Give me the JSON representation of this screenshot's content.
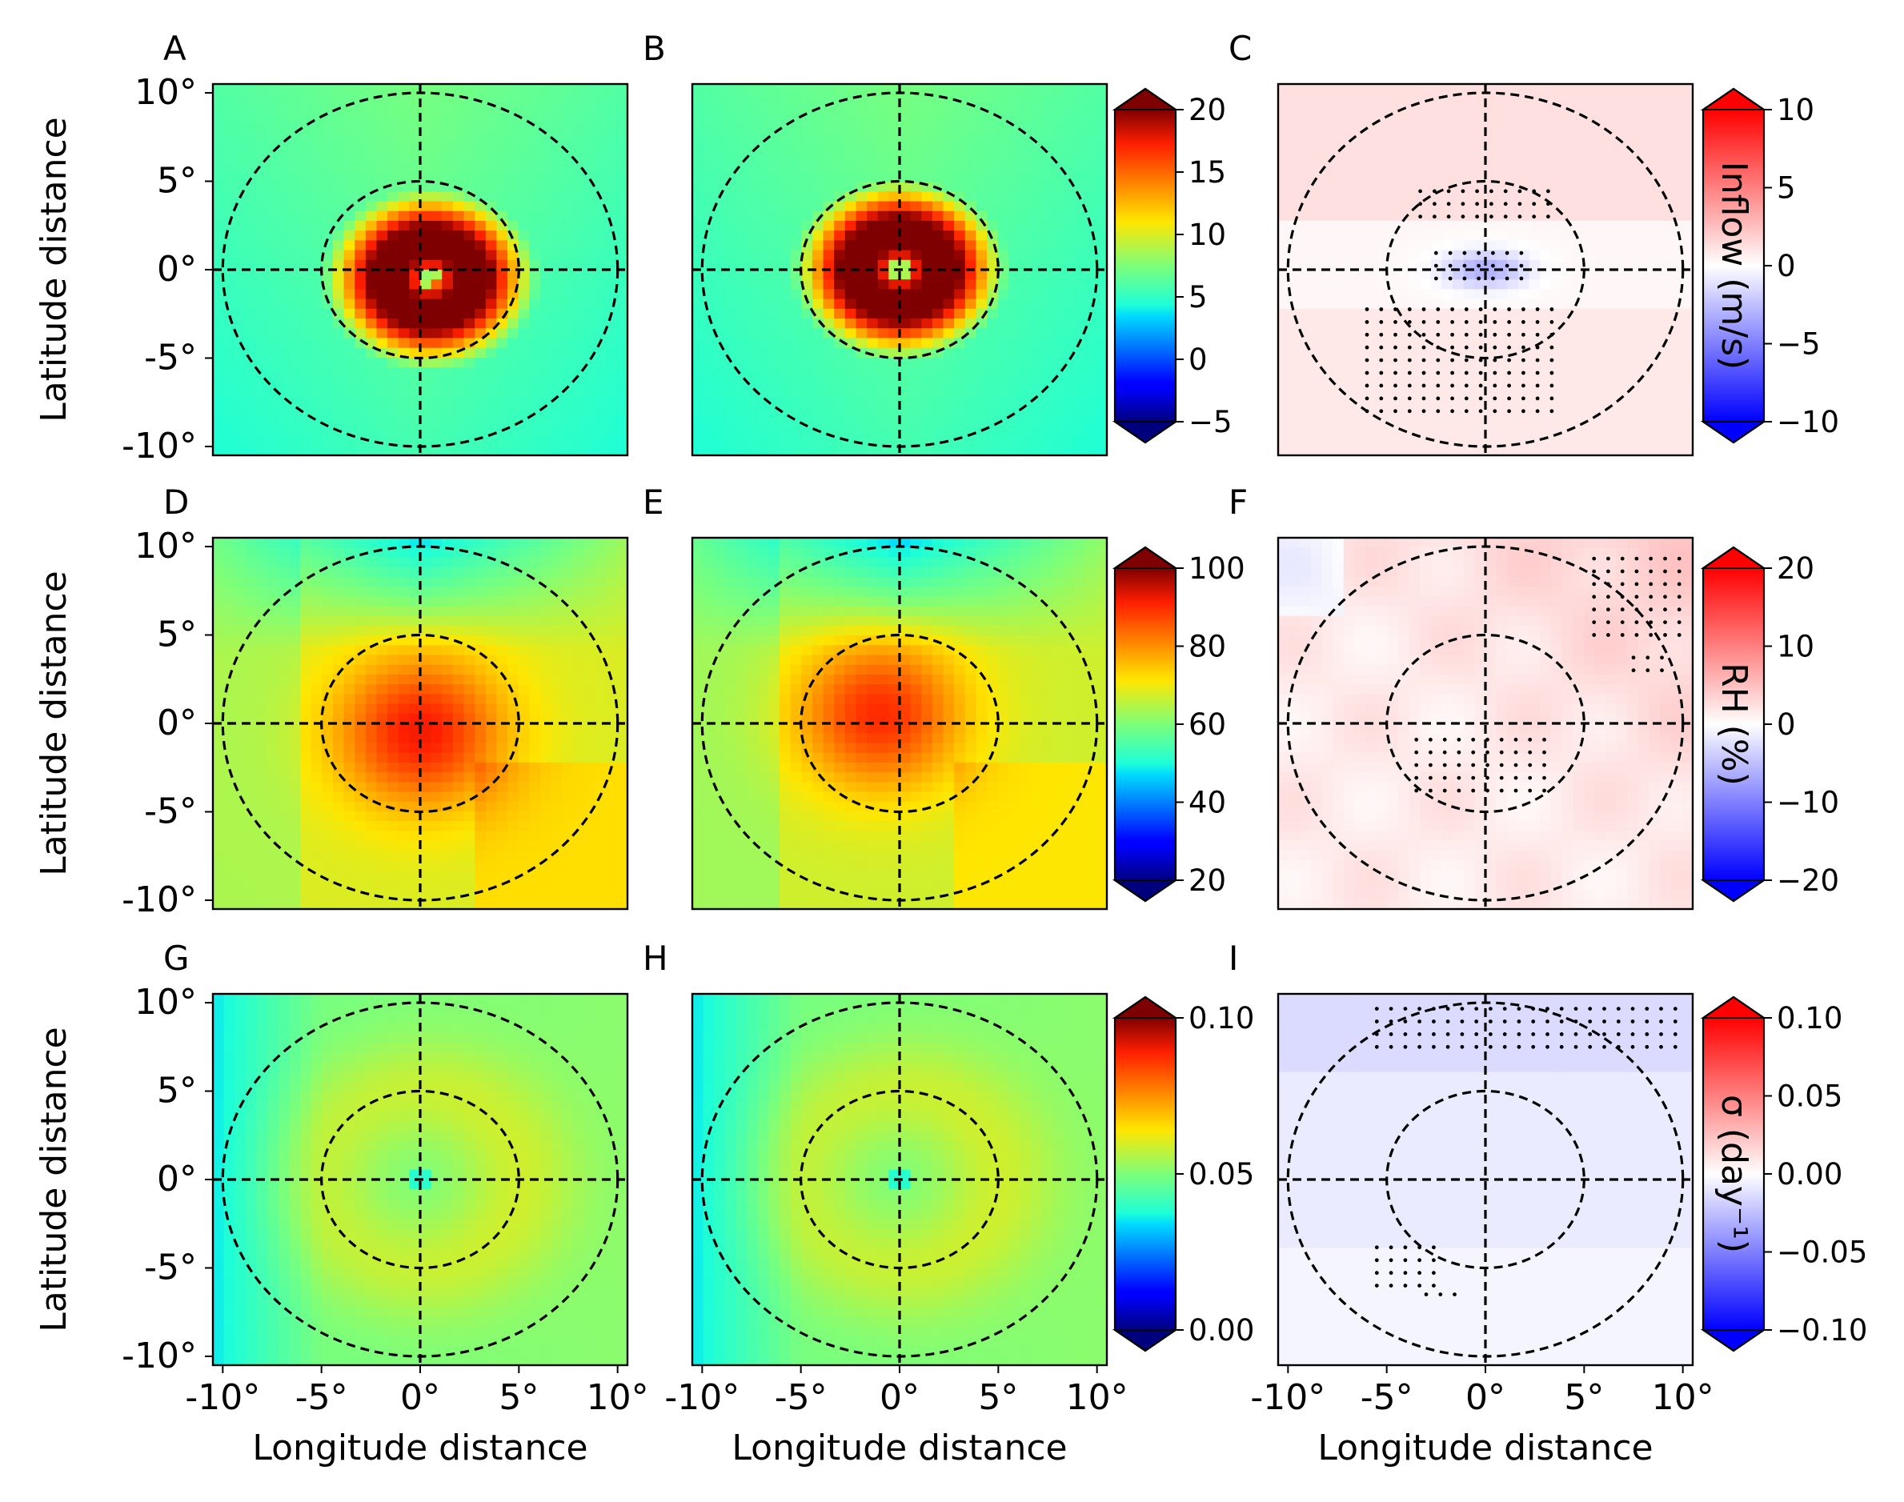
{
  "chart_data": {
    "type": "heatmap",
    "layout": "3x3 panel grid",
    "x_axis": {
      "label": "Longitude distance",
      "ticks": [
        "-10°",
        "-5°",
        "0°",
        "5°",
        "10°"
      ],
      "values": [
        -10,
        -5,
        0,
        5,
        10
      ],
      "range": [
        -10.5,
        10.5
      ]
    },
    "y_axis": {
      "label": "Latitude distance",
      "ticks": [
        "10°",
        "5°",
        "0°",
        "-5°",
        "-10°"
      ],
      "values": [
        10,
        5,
        0,
        -5,
        -10
      ],
      "range": [
        -10.5,
        10.5
      ]
    },
    "overlays": {
      "circle_radii_deg": [
        5,
        10
      ],
      "crosshair": true,
      "line_style": "dashed",
      "stippling": "black dots in difference panels"
    },
    "rows": [
      {
        "quantity": "Inflow",
        "colorbar_main": {
          "colormap": "jet",
          "ticks": [
            "20",
            "15",
            "10",
            "5",
            "0",
            "−5"
          ],
          "range": [
            -5,
            20
          ]
        },
        "colorbar_diff": {
          "colormap": "bwr",
          "label": "Inflow (m/s)",
          "ticks": [
            "10",
            "5",
            "0",
            "−5",
            "−10"
          ],
          "range": [
            -10,
            10
          ]
        }
      },
      {
        "quantity": "RH",
        "colorbar_main": {
          "colormap": "jet",
          "ticks": [
            "100",
            "80",
            "60",
            "40",
            "20"
          ],
          "range": [
            20,
            100
          ]
        },
        "colorbar_diff": {
          "colormap": "bwr",
          "label": "RH (%)",
          "ticks": [
            "20",
            "10",
            "0",
            "−10",
            "−20"
          ],
          "range": [
            -20,
            20
          ]
        }
      },
      {
        "quantity": "sigma",
        "colorbar_main": {
          "colormap": "jet",
          "ticks": [
            "0.10",
            "0.05",
            "0.00"
          ],
          "range": [
            0,
            0.1
          ]
        },
        "colorbar_diff": {
          "colormap": "bwr",
          "label": "σ (day⁻¹)",
          "ticks": [
            "0.10",
            "0.05",
            "0.00",
            "−0.05",
            "−0.10"
          ],
          "range": [
            -0.1,
            0.1
          ]
        }
      }
    ],
    "panels": [
      {
        "id": "A",
        "row": 0,
        "col": 0,
        "kind": "main",
        "peak": 20,
        "peak_pos": [
          0.5,
          -0.5
        ],
        "base": 6.5
      },
      {
        "id": "B",
        "row": 0,
        "col": 1,
        "kind": "main",
        "peak": 20,
        "peak_pos": [
          0,
          0
        ],
        "base": 6.5
      },
      {
        "id": "C",
        "row": 0,
        "col": 2,
        "kind": "diff",
        "note": "negative core near center (about -3), weak positive elsewhere"
      },
      {
        "id": "D",
        "row": 1,
        "col": 0,
        "kind": "main",
        "peak": 92,
        "peak_pos": [
          0,
          -0.5
        ],
        "base": 68
      },
      {
        "id": "E",
        "row": 1,
        "col": 1,
        "kind": "main",
        "peak": 90,
        "peak_pos": [
          -1,
          0.5
        ],
        "base": 67
      },
      {
        "id": "F",
        "row": 1,
        "col": 2,
        "kind": "diff",
        "note": "weak positive RH difference, strongest upper right"
      },
      {
        "id": "G",
        "row": 2,
        "col": 0,
        "kind": "main",
        "center_value": 0.045,
        "base": 0.05
      },
      {
        "id": "H",
        "row": 2,
        "col": 1,
        "kind": "main",
        "center_value": 0.045,
        "base": 0.05
      },
      {
        "id": "I",
        "row": 2,
        "col": 2,
        "kind": "diff",
        "note": "weak negative sigma difference, mostly north"
      }
    ]
  }
}
